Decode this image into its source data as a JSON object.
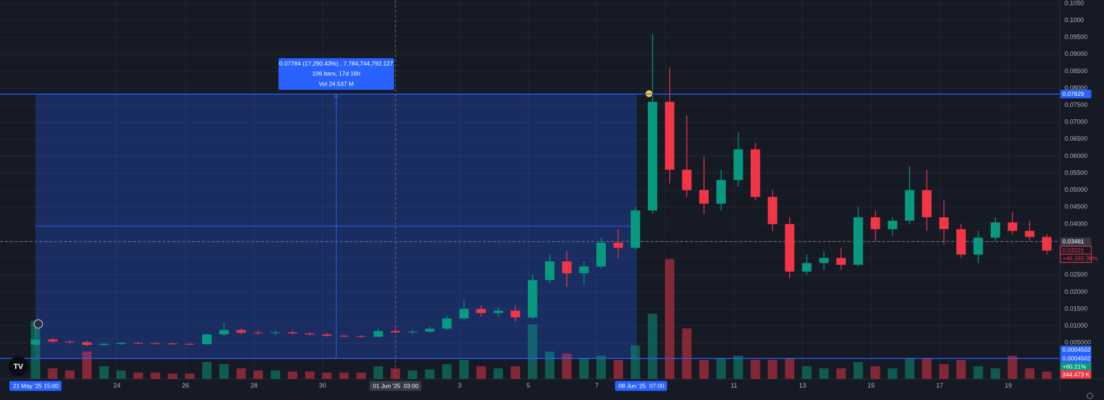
{
  "chart_data": {
    "type": "candlestick",
    "x": [
      0.625,
      1.125,
      1.625,
      2.125,
      2.625,
      3.125,
      3.625,
      4.125,
      4.625,
      5.125,
      5.625,
      6.125,
      6.625,
      7.125,
      7.625,
      8.125,
      8.625,
      9.125,
      9.625,
      10.125,
      10.625,
      11.125,
      11.625,
      12.125,
      12.625,
      13.125,
      13.625,
      14.125,
      14.625,
      15.125,
      15.625,
      16.125,
      16.625,
      17.125,
      17.625,
      18.125,
      18.625,
      19.125,
      19.625,
      20.125,
      20.625,
      21.125,
      21.625,
      22.125,
      22.625,
      23.125,
      23.625,
      24.125,
      24.625,
      25.125,
      25.625,
      26.125,
      26.625,
      27.125,
      27.625,
      28.125,
      28.625,
      29.125,
      29.625,
      30.125
    ],
    "open": [
      0.0045,
      0.006,
      0.0054,
      0.0052,
      0.0044,
      0.0047,
      0.005,
      0.0049,
      0.0048,
      0.0047,
      0.0046,
      0.0075,
      0.0088,
      0.008,
      0.0079,
      0.0081,
      0.0078,
      0.0075,
      0.0071,
      0.007,
      0.0068,
      0.0085,
      0.0081,
      0.0083,
      0.0092,
      0.0122,
      0.015,
      0.0138,
      0.0145,
      0.0125,
      0.0235,
      0.029,
      0.0255,
      0.0275,
      0.0345,
      0.033,
      0.044,
      0.076,
      0.056,
      0.05,
      0.046,
      0.053,
      0.062,
      0.048,
      0.04,
      0.026,
      0.0285,
      0.03,
      0.028,
      0.042,
      0.0385,
      0.041,
      0.05,
      0.042,
      0.0385,
      0.031,
      0.036,
      0.0405,
      0.038,
      0.0362
    ],
    "high": [
      0.0118,
      0.0065,
      0.0058,
      0.0056,
      0.005,
      0.0052,
      0.0053,
      0.0052,
      0.0051,
      0.005,
      0.0078,
      0.011,
      0.0092,
      0.0086,
      0.0085,
      0.0087,
      0.0082,
      0.0079,
      0.0075,
      0.0073,
      0.0092,
      0.0095,
      0.009,
      0.0098,
      0.013,
      0.0175,
      0.016,
      0.0155,
      0.016,
      0.025,
      0.031,
      0.032,
      0.029,
      0.036,
      0.0385,
      0.045,
      0.096,
      0.086,
      0.072,
      0.06,
      0.056,
      0.067,
      0.064,
      0.05,
      0.042,
      0.031,
      0.032,
      0.033,
      0.045,
      0.044,
      0.042,
      0.057,
      0.056,
      0.047,
      0.04,
      0.038,
      0.042,
      0.0435,
      0.041,
      0.037
    ],
    "low": [
      0.004,
      0.005,
      0.0048,
      0.004,
      0.004,
      0.0043,
      0.0046,
      0.0045,
      0.0045,
      0.0044,
      0.0045,
      0.007,
      0.0076,
      0.0074,
      0.0073,
      0.0075,
      0.0072,
      0.0068,
      0.0066,
      0.0065,
      0.0066,
      0.0078,
      0.0076,
      0.008,
      0.0088,
      0.0115,
      0.0128,
      0.0125,
      0.0112,
      0.012,
      0.0225,
      0.0215,
      0.022,
      0.027,
      0.03,
      0.0325,
      0.043,
      0.052,
      0.048,
      0.043,
      0.044,
      0.051,
      0.047,
      0.038,
      0.024,
      0.025,
      0.0265,
      0.0265,
      0.0275,
      0.035,
      0.0365,
      0.04,
      0.038,
      0.034,
      0.03,
      0.0285,
      0.035,
      0.037,
      0.035,
      0.031
    ],
    "close": [
      0.006,
      0.0054,
      0.0052,
      0.0044,
      0.0047,
      0.005,
      0.0049,
      0.0048,
      0.0047,
      0.0046,
      0.0075,
      0.0088,
      0.008,
      0.0079,
      0.0081,
      0.0078,
      0.0075,
      0.0071,
      0.007,
      0.0068,
      0.0085,
      0.0081,
      0.0083,
      0.0092,
      0.0122,
      0.015,
      0.0138,
      0.0145,
      0.0125,
      0.0235,
      0.029,
      0.0255,
      0.0275,
      0.0345,
      0.033,
      0.044,
      0.076,
      0.056,
      0.05,
      0.046,
      0.053,
      0.062,
      0.048,
      0.04,
      0.026,
      0.0285,
      0.03,
      0.028,
      0.042,
      0.0385,
      0.041,
      0.05,
      0.042,
      0.0385,
      0.031,
      0.036,
      0.0405,
      0.038,
      0.0362,
      0.0322
    ],
    "volume": [
      2760000,
      500000,
      400000,
      1300000,
      600000,
      400000,
      300000,
      300000,
      250000,
      250000,
      800000,
      700000,
      500000,
      400000,
      400000,
      350000,
      350000,
      300000,
      300000,
      300000,
      600000,
      500000,
      400000,
      450000,
      700000,
      900000,
      600000,
      500000,
      600000,
      2600000,
      1300000,
      1200000,
      1000000,
      1100000,
      900000,
      1600000,
      3100000,
      5700000,
      2400000,
      900000,
      1000000,
      1100000,
      900000,
      900000,
      1000000,
      600000,
      500000,
      500000,
      800000,
      600000,
      500000,
      1000000,
      1000000,
      700000,
      900000,
      600000,
      500000,
      1100000,
      500000,
      344473
    ],
    "last_volume_label": "344.473 K",
    "up_color": "#089981",
    "down_color": "#f23645",
    "xlim": [
      -0.41,
      30.5
    ],
    "xticks": [
      {
        "value": 3,
        "label": "24"
      },
      {
        "value": 5,
        "label": "26"
      },
      {
        "value": 7,
        "label": "28"
      },
      {
        "value": 9,
        "label": "30"
      },
      {
        "value": 13,
        "label": "3"
      },
      {
        "value": 15,
        "label": "5"
      },
      {
        "value": 17,
        "label": "7"
      },
      {
        "value": 19,
        "label": "9"
      },
      {
        "value": 21,
        "label": "11"
      },
      {
        "value": 23,
        "label": "13"
      },
      {
        "value": 25,
        "label": "15"
      },
      {
        "value": 27,
        "label": "17"
      },
      {
        "value": 29,
        "label": "19"
      }
    ],
    "x_markers": [
      {
        "value": 0.625,
        "date": "21 May '25",
        "time": "15:00",
        "color": "#2962ff"
      },
      {
        "value": 11.125,
        "date": "01 Jun '25",
        "time": "03:00",
        "color": "#363a45"
      },
      {
        "value": 18.29,
        "date": "08 Jun '25",
        "time": "07:00",
        "color": "#2962ff"
      }
    ],
    "ylim": [
      -0.0056,
      0.106
    ],
    "yticks": [
      {
        "value": 0.105,
        "label": "0.1050"
      },
      {
        "value": 0.1,
        "label": "0.1000"
      },
      {
        "value": 0.095,
        "label": "0.09500"
      },
      {
        "value": 0.09,
        "label": "0.09000"
      },
      {
        "value": 0.085,
        "label": "0.08500"
      },
      {
        "value": 0.08,
        "label": "0.08000"
      },
      {
        "value": 0.075,
        "label": "0.07500"
      },
      {
        "value": 0.07,
        "label": "0.07000"
      },
      {
        "value": 0.065,
        "label": "0.06500"
      },
      {
        "value": 0.06,
        "label": "0.06000"
      },
      {
        "value": 0.055,
        "label": "0.05500"
      },
      {
        "value": 0.05,
        "label": "0.05000"
      },
      {
        "value": 0.045,
        "label": "0.04500"
      },
      {
        "value": 0.04,
        "label": "0.04000"
      },
      {
        "value": 0.035,
        "label": "0.03500"
      },
      {
        "value": 0.03,
        "label": "0.03000"
      },
      {
        "value": 0.025,
        "label": "0.02500"
      },
      {
        "value": 0.02,
        "label": "0.02000"
      },
      {
        "value": 0.015,
        "label": "0.01500"
      },
      {
        "value": 0.01,
        "label": "0.01000"
      },
      {
        "value": 0.005,
        "label": "0.005000"
      }
    ],
    "grid": true,
    "price_lines": [
      {
        "value": 0.07829,
        "label": "0.07829",
        "color": "#2962ff"
      },
      {
        "value": 0.0004502,
        "label": "0.0004502",
        "color": "#2962ff"
      }
    ],
    "daily_change": "+60.21%",
    "crosshair": {
      "x": 11.125,
      "y": 0.03481,
      "label": "0.03481"
    },
    "last_price": {
      "value": 0.03221,
      "label": "0.03221",
      "change": "+46,192.39%"
    },
    "measure": {
      "x": [
        0.625,
        18.17
      ],
      "y": [
        0.0004502,
        0.07829
      ],
      "lines": [
        "0.07784 (17,290.43%) , 7,784,744,792,127",
        "106 bars, 17d 16h",
        "Vol 24.537 M"
      ]
    }
  }
}
